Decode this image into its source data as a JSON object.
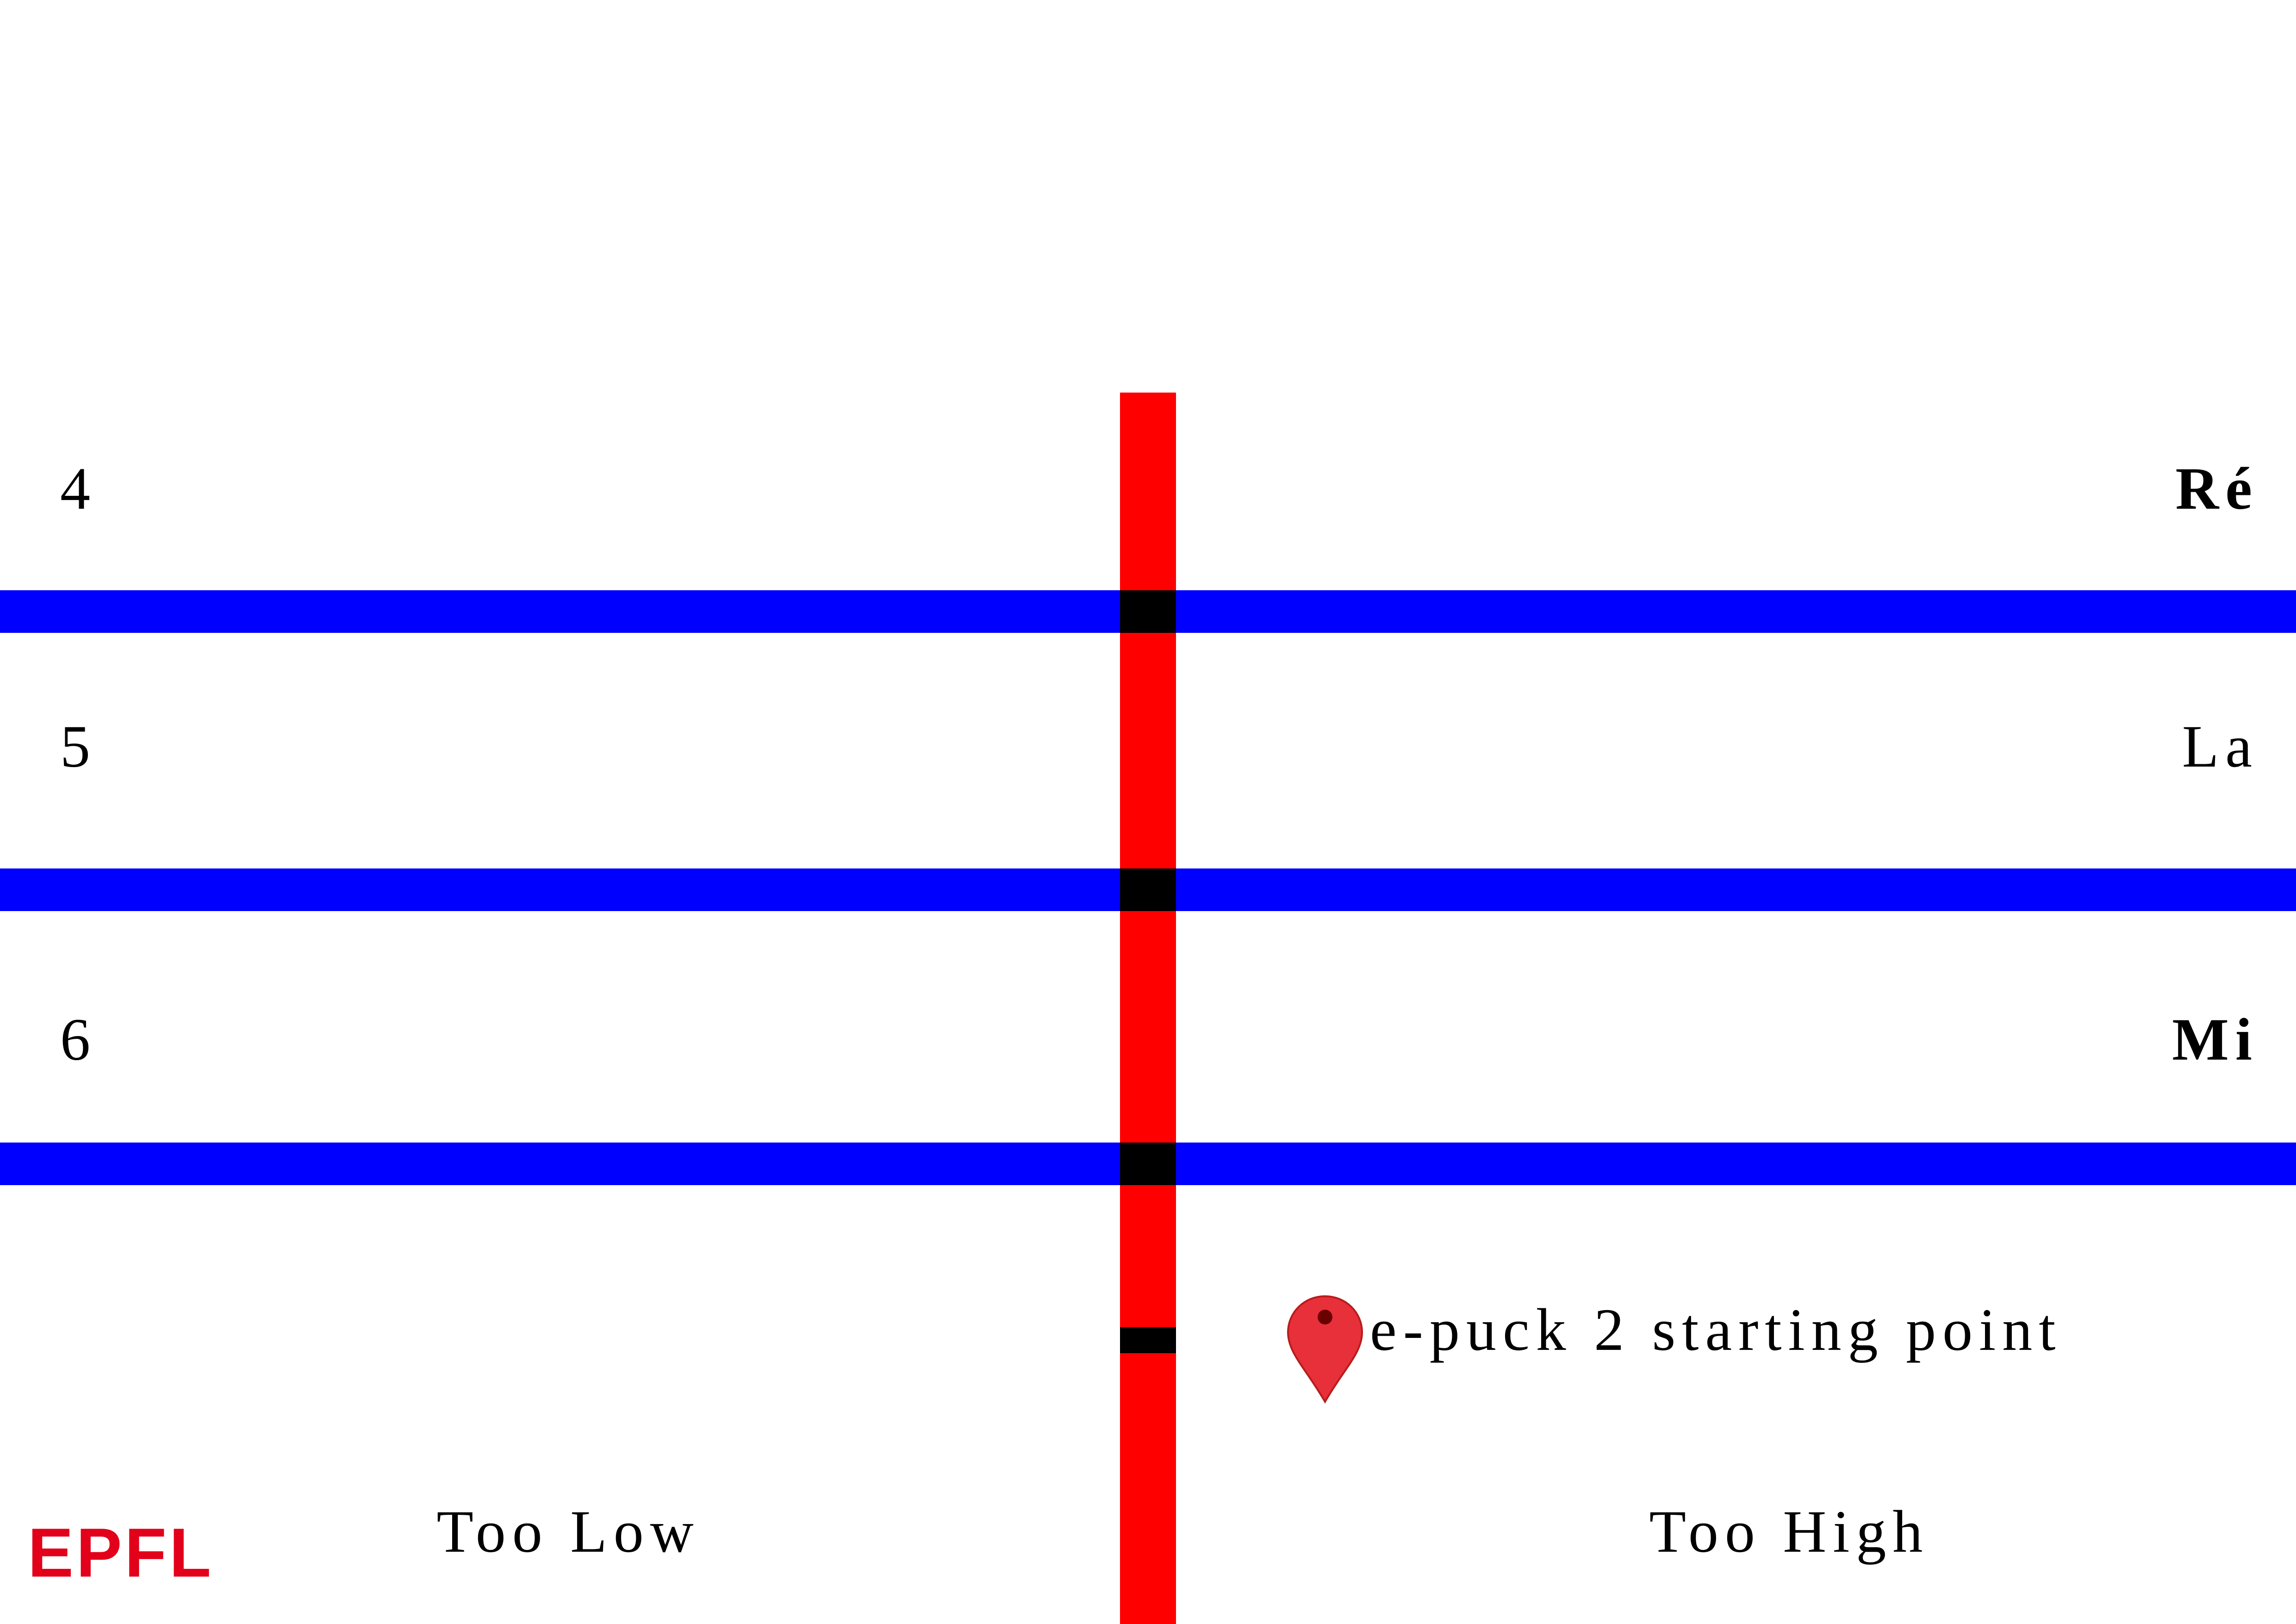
{
  "row_labels": {
    "left": [
      "4",
      "5",
      "6"
    ],
    "right": [
      "Ré",
      "La",
      "Mi"
    ]
  },
  "start_label": "e-puck 2 starting point",
  "zones": {
    "left": "Too Low",
    "right": "Too High"
  },
  "logo": "EPFL"
}
